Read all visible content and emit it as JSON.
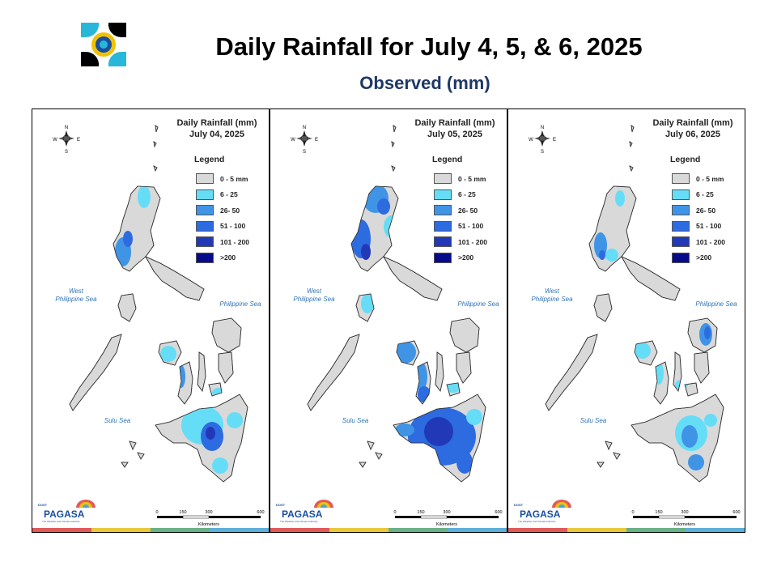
{
  "header": {
    "title": "Daily Rainfall for July 4, 5, & 6, 2025",
    "subtitle": "Observed (mm)"
  },
  "legend": {
    "title": "Legend",
    "items": [
      {
        "label": "0 - 5 mm",
        "color": "#d9d9d9"
      },
      {
        "label": "6 - 25",
        "color": "#66ddf7"
      },
      {
        "label": "26- 50",
        "color": "#3f94e6"
      },
      {
        "label": "51 - 100",
        "color": "#2d6be0"
      },
      {
        "label": "101 - 200",
        "color": "#2239b7"
      },
      {
        "label": ">200",
        "color": "#070a8a"
      }
    ]
  },
  "labels": {
    "sea_west": "West\nPhilippine Sea",
    "sea_east": "Philippine Sea",
    "sea_sulu": "Sulu Sea",
    "compass_n": "N",
    "compass_s": "S",
    "compass_e": "E",
    "compass_w": "W",
    "scale_ticks": [
      "0",
      "150",
      "300",
      "600"
    ],
    "scale_unit": "Kilometers",
    "brand_dost": "DOST",
    "brand_name": "PAGASA",
    "brand_tag": "The Weather and Climate Authority"
  },
  "maps": [
    {
      "title": "Daily Rainfall (mm)\nJuly 04, 2025"
    },
    {
      "title": "Daily Rainfall (mm)\nJuly 05, 2025"
    },
    {
      "title": "Daily Rainfall (mm)\nJuly 06, 2025"
    }
  ],
  "colors": {
    "land_base": "#d9d9d9",
    "title_text": "#000000",
    "subtitle_text": "#1f3864",
    "sea_label": "#2e74b5",
    "stripe": [
      "#e05a5a",
      "#e8c83a",
      "#6ab187",
      "#5fb0d9"
    ]
  }
}
